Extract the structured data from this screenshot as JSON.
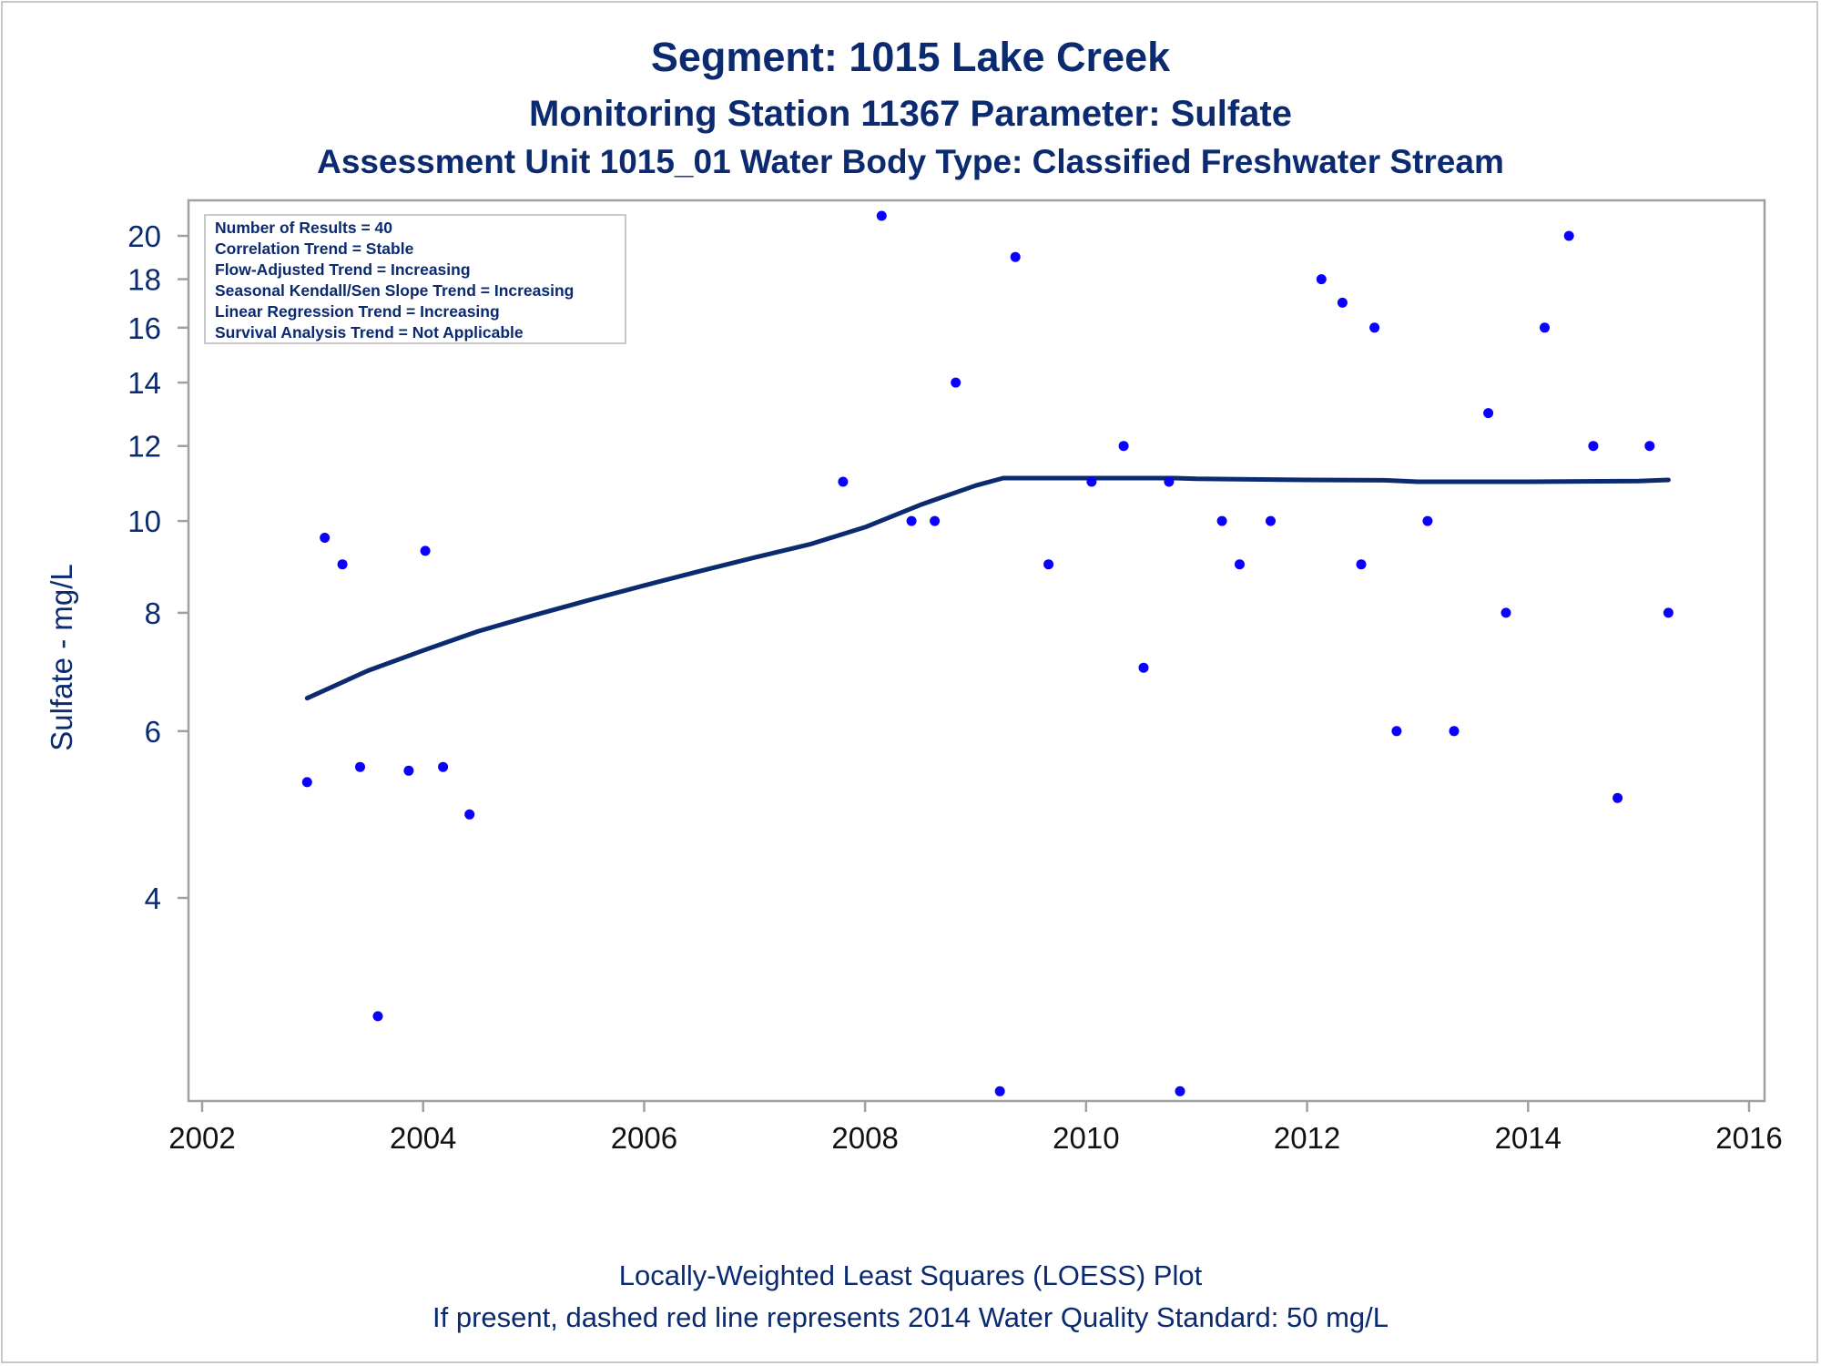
{
  "titles": {
    "line1": "Segment: 1015  Lake Creek",
    "line2": "Monitoring Station 11367 Parameter: Sulfate",
    "line3": "Assessment Unit 1015_01   Water Body Type: Classified Freshwater Stream"
  },
  "stats_box": [
    "Number of Results = 40",
    "Correlation Trend = Stable",
    "Flow-Adjusted Trend = Increasing",
    "Seasonal Kendall/Sen Slope Trend = Increasing",
    "Linear Regression Trend = Increasing",
    "Survival Analysis Trend = Not Applicable"
  ],
  "footnotes": {
    "line1": "Locally-Weighted Least Squares (LOESS) Plot",
    "line2": "If present, dashed red line represents 2014 Water Quality Standard: 50    mg/L"
  },
  "colors": {
    "points": "#0a00ff",
    "loess": "#0b2a70",
    "text": "#0b2a70",
    "axis": "#a0a0a0"
  },
  "chart_data": {
    "type": "scatter",
    "title": "Segment: 1015  Lake Creek",
    "xlabel": "",
    "ylabel": "Sulfate - mg/L",
    "y_scale": "log",
    "xlim": [
      2002,
      2016
    ],
    "ylim": [
      2.5,
      21.6
    ],
    "x_ticks": [
      2002,
      2004,
      2006,
      2008,
      2010,
      2012,
      2014,
      2016
    ],
    "y_ticks": [
      4,
      6,
      8,
      10,
      12,
      14,
      16,
      18,
      20
    ],
    "grid": false,
    "points": [
      [
        2002.95,
        5.3
      ],
      [
        2003.11,
        9.6
      ],
      [
        2003.27,
        9.0
      ],
      [
        2003.43,
        5.5
      ],
      [
        2003.59,
        3.0
      ],
      [
        2003.87,
        5.45
      ],
      [
        2004.02,
        9.3
      ],
      [
        2004.18,
        5.5
      ],
      [
        2004.42,
        4.9
      ],
      [
        2007.8,
        11.0
      ],
      [
        2008.15,
        21.0
      ],
      [
        2008.42,
        10.0
      ],
      [
        2008.63,
        10.0
      ],
      [
        2008.82,
        14.0
      ],
      [
        2009.22,
        2.5
      ],
      [
        2009.36,
        19.0
      ],
      [
        2009.66,
        9.0
      ],
      [
        2010.05,
        11.0
      ],
      [
        2010.34,
        12.0
      ],
      [
        2010.52,
        7.0
      ],
      [
        2010.75,
        11.0
      ],
      [
        2010.85,
        2.5
      ],
      [
        2011.23,
        10.0
      ],
      [
        2011.39,
        9.0
      ],
      [
        2011.67,
        10.0
      ],
      [
        2012.13,
        18.0
      ],
      [
        2012.32,
        17.0
      ],
      [
        2012.49,
        9.0
      ],
      [
        2012.61,
        16.0
      ],
      [
        2012.81,
        6.0
      ],
      [
        2013.09,
        10.0
      ],
      [
        2013.33,
        6.0
      ],
      [
        2013.64,
        13.0
      ],
      [
        2013.8,
        8.0
      ],
      [
        2014.15,
        16.0
      ],
      [
        2014.37,
        20.0
      ],
      [
        2014.59,
        12.0
      ],
      [
        2014.81,
        5.1
      ],
      [
        2015.1,
        12.0
      ],
      [
        2015.27,
        8.0
      ]
    ],
    "loess_series": {
      "x": [
        2002.95,
        2003.5,
        2004.0,
        2004.5,
        2005.0,
        2005.5,
        2006.0,
        2006.5,
        2007.0,
        2007.5,
        2008.0,
        2008.5,
        2009.0,
        2009.25,
        2010.0,
        2010.8,
        2011.0,
        2012.0,
        2012.7,
        2013.0,
        2014.0,
        2015.0,
        2015.27
      ],
      "y": [
        6.5,
        6.95,
        7.3,
        7.65,
        7.95,
        8.25,
        8.55,
        8.85,
        9.15,
        9.45,
        9.85,
        10.4,
        10.9,
        11.1,
        11.1,
        11.1,
        11.08,
        11.05,
        11.04,
        11.0,
        11.0,
        11.02,
        11.05
      ]
    }
  }
}
